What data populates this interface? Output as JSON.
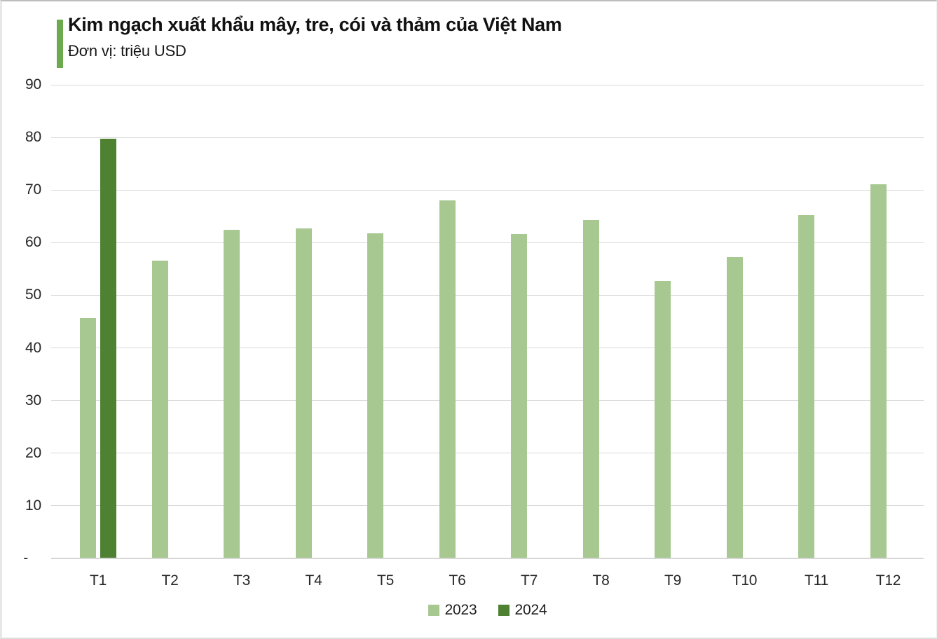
{
  "header": {
    "title": "Kim ngạch xuất khẩu mây, tre, cói và thảm của Việt Nam",
    "subtitle": "Đơn vị: triệu USD",
    "accent_color": "#6caa4d"
  },
  "chart_data": {
    "type": "bar",
    "title": "Kim ngạch xuất khẩu mây, tre, cói và thảm của Việt Nam",
    "subtitle": "Đơn vị: triệu USD",
    "unit": "triệu USD",
    "categories": [
      "T1",
      "T2",
      "T3",
      "T4",
      "T5",
      "T6",
      "T7",
      "T8",
      "T9",
      "T10",
      "T11",
      "T12"
    ],
    "series": [
      {
        "name": "2023",
        "color": "#a7c891",
        "values": [
          45.7,
          56.6,
          62.4,
          62.7,
          61.8,
          68.0,
          61.7,
          64.3,
          52.7,
          57.2,
          65.2,
          71.1
        ]
      },
      {
        "name": "2024",
        "color": "#4f8133",
        "values": [
          79.7,
          null,
          null,
          null,
          null,
          null,
          null,
          null,
          null,
          null,
          null,
          null
        ]
      }
    ],
    "ylim": [
      0,
      90
    ],
    "ytick_step": 10,
    "yticks": [
      {
        "value": 0,
        "label": "-"
      },
      {
        "value": 10,
        "label": "10"
      },
      {
        "value": 20,
        "label": "20"
      },
      {
        "value": 30,
        "label": "30"
      },
      {
        "value": 40,
        "label": "40"
      },
      {
        "value": 50,
        "label": "50"
      },
      {
        "value": 60,
        "label": "60"
      },
      {
        "value": 70,
        "label": "70"
      },
      {
        "value": 80,
        "label": "80"
      },
      {
        "value": 90,
        "label": "90"
      }
    ],
    "grid": true,
    "gridline_color": "#d9d9d9",
    "legend_position": "bottom",
    "legend": [
      {
        "label": "2023",
        "color": "#a7c891"
      },
      {
        "label": "2024",
        "color": "#4f8133"
      }
    ]
  }
}
